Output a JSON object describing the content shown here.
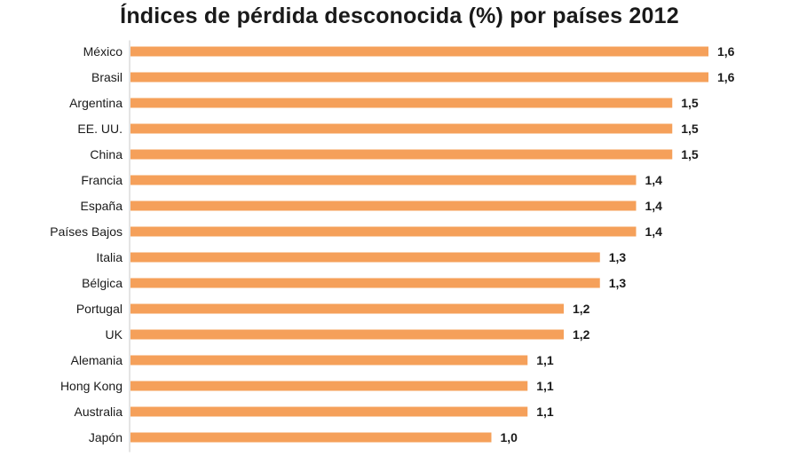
{
  "chart_data": {
    "type": "bar",
    "orientation": "horizontal",
    "title": "Índices de pérdida desconocida (%) por países 2012",
    "categories": [
      "México",
      "Brasil",
      "Argentina",
      "EE. UU.",
      "China",
      "Francia",
      "España",
      "Países Bajos",
      "Italia",
      "Bélgica",
      "Portugal",
      "UK",
      "Alemania",
      "Hong Kong",
      "Australia",
      "Japón"
    ],
    "values": [
      1.6,
      1.6,
      1.5,
      1.5,
      1.5,
      1.4,
      1.4,
      1.4,
      1.3,
      1.3,
      1.2,
      1.2,
      1.1,
      1.1,
      1.1,
      1.0
    ],
    "value_labels": [
      "1,6",
      "1,6",
      "1,5",
      "1,5",
      "1,5",
      "1,4",
      "1,4",
      "1,4",
      "1,3",
      "1,3",
      "1,2",
      "1,2",
      "1,1",
      "1,1",
      "1,1",
      "1,0"
    ],
    "xlim": [
      0,
      1.6
    ],
    "xlabel": "",
    "ylabel": "",
    "grid": false,
    "legend": "none",
    "bar_color": "#F5A05A",
    "axis_color": "#c8c8c8"
  }
}
